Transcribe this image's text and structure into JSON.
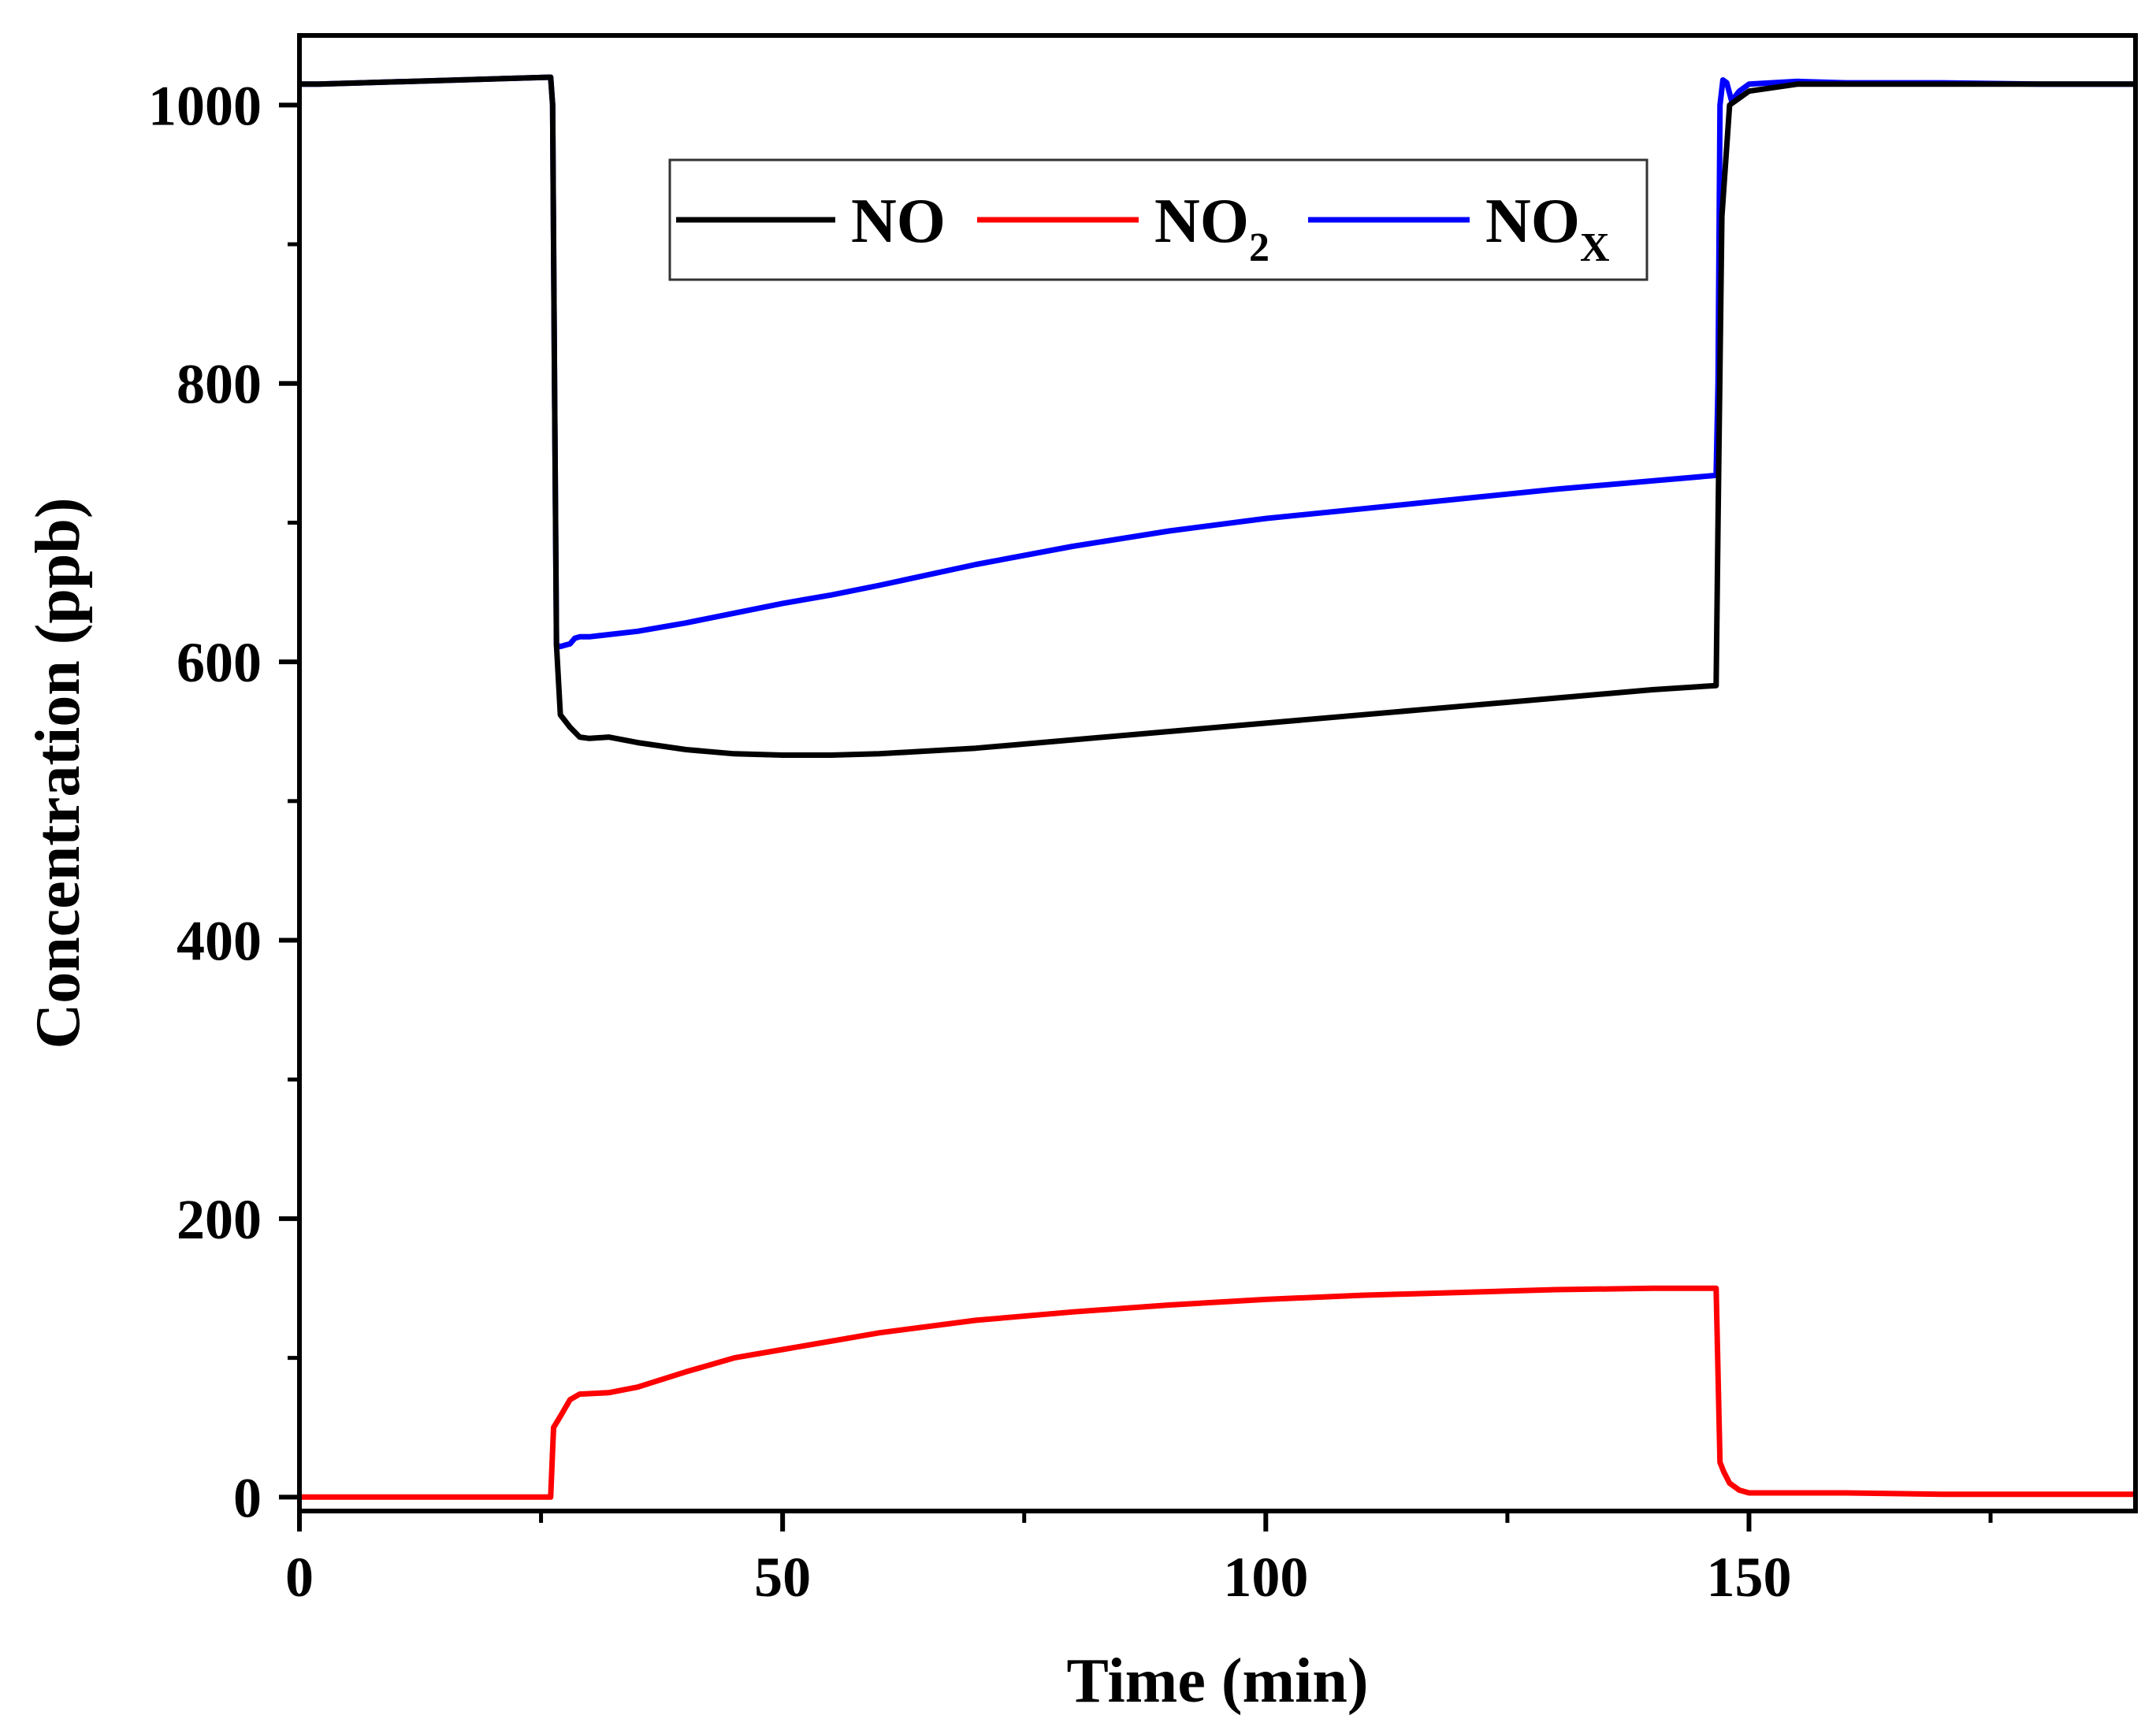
{
  "chart_data": {
    "type": "line",
    "title": "",
    "xlabel": "Time (min)",
    "ylabel": "Concentration (ppb)",
    "xlim": [
      0,
      190
    ],
    "ylim": [
      -10,
      1050
    ],
    "x_ticks": [
      0,
      50,
      100,
      150
    ],
    "x_tick_labels": [
      "0",
      "50",
      "100",
      "150"
    ],
    "x_minor_ticks": [
      25,
      75,
      125,
      175
    ],
    "y_ticks": [
      0,
      200,
      400,
      600,
      800,
      1000
    ],
    "y_tick_labels": [
      "0",
      "200",
      "400",
      "600",
      "800",
      "1000"
    ],
    "y_minor_ticks": [
      100,
      300,
      500,
      700,
      900
    ],
    "grid": false,
    "legend_position": "top-center",
    "series": [
      {
        "name": "NO",
        "legend_main": "NO",
        "legend_sub": "",
        "color": "#000000",
        "x": [
          0,
          2,
          26,
          26.2,
          26.4,
          26.6,
          27,
          28,
          29,
          30,
          32,
          35,
          40,
          45,
          50,
          55,
          60,
          70,
          80,
          90,
          100,
          110,
          120,
          130,
          140,
          146.6,
          146.8,
          147.2,
          148,
          149,
          150,
          155,
          160,
          170,
          180,
          190
        ],
        "y": [
          1015,
          1015,
          1020,
          1000,
          800,
          612,
          562,
          553,
          546,
          545,
          546,
          542,
          537,
          534,
          533,
          533,
          534,
          538,
          544,
          550,
          556,
          562,
          568,
          574,
          580,
          583,
          700,
          920,
          1000,
          1005,
          1010,
          1015,
          1015,
          1015,
          1015,
          1015
        ]
      },
      {
        "name": "NO2",
        "legend_main": "NO",
        "legend_sub": "2",
        "color": "#ff0000",
        "x": [
          0,
          26,
          26.3,
          27,
          28,
          29,
          32,
          35,
          40,
          45,
          50,
          55,
          60,
          70,
          80,
          90,
          100,
          110,
          120,
          130,
          140,
          146.6,
          147,
          147.4,
          148,
          149,
          150,
          152,
          160,
          170,
          180,
          190
        ],
        "y": [
          0,
          0,
          50,
          58,
          70,
          74,
          75,
          79,
          90,
          100,
          106,
          112,
          118,
          127,
          133,
          138,
          142,
          145,
          147,
          149,
          150,
          150,
          25,
          18,
          10,
          5,
          3,
          3,
          3,
          2,
          2,
          2
        ]
      },
      {
        "name": "NOX",
        "legend_main": "NO",
        "legend_sub": "X",
        "color": "#0000ff",
        "x": [
          0,
          2,
          26,
          26.2,
          26.4,
          26.6,
          27,
          27.5,
          28,
          28.5,
          29,
          30,
          35,
          40,
          45,
          50,
          55,
          60,
          70,
          80,
          90,
          100,
          110,
          120,
          130,
          140,
          146.6,
          146.8,
          147,
          147.3,
          147.7,
          148.2,
          149,
          150,
          155,
          160,
          170,
          180,
          190
        ],
        "y": [
          1015,
          1015,
          1020,
          1000,
          800,
          612,
          611,
          612,
          613,
          617,
          618,
          618,
          622,
          628,
          635,
          642,
          648,
          655,
          670,
          683,
          694,
          703,
          710,
          717,
          724,
          730,
          734,
          800,
          1000,
          1018,
          1016,
          1003,
          1010,
          1015,
          1017,
          1016,
          1016,
          1015,
          1015
        ]
      }
    ]
  }
}
